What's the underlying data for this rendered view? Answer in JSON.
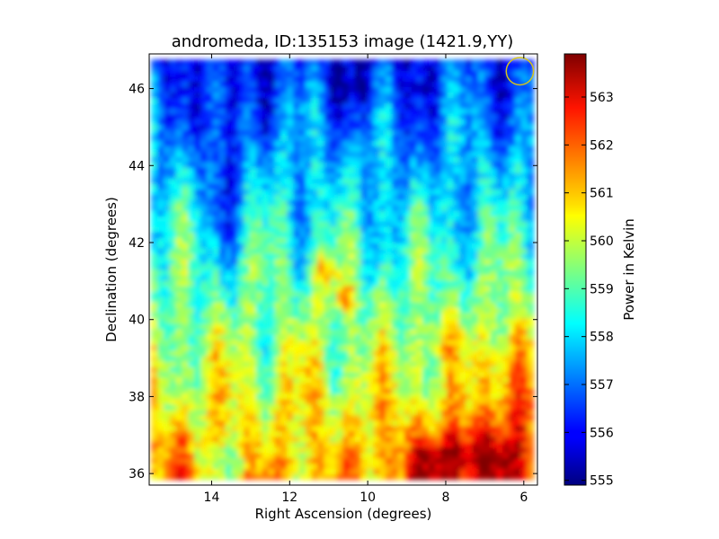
{
  "chart_data": {
    "type": "heatmap",
    "title": "andromeda, ID:135153 image (1421.9,YY)",
    "xlabel": "Right Ascension (degrees)",
    "ylabel": "Declination (degrees)",
    "xlim": [
      15.6,
      5.65
    ],
    "ylim": [
      35.7,
      46.9
    ],
    "x_ticks": [
      14,
      12,
      10,
      8,
      6
    ],
    "y_ticks": [
      36,
      38,
      40,
      42,
      44,
      46
    ],
    "x_tick_labels": [
      "14",
      "12",
      "10",
      "8",
      "6"
    ],
    "y_tick_labels": [
      "36",
      "38",
      "40",
      "42",
      "44",
      "46"
    ],
    "colorbar": {
      "label": "Power in Kelvin",
      "range": [
        554.9,
        563.9
      ],
      "ticks": [
        555,
        556,
        557,
        558,
        559,
        560,
        561,
        562,
        563
      ],
      "tick_labels": [
        "555",
        "556",
        "557",
        "558",
        "559",
        "560",
        "561",
        "562",
        "563"
      ],
      "colormap": "jet"
    },
    "data_extent": {
      "ra": [
        15.55,
        5.75
      ],
      "dec": [
        35.85,
        46.75
      ]
    },
    "features": [
      {
        "kind": "low",
        "ra": 13.7,
        "dec": 44.5,
        "value": 555.5
      },
      {
        "kind": "low",
        "ra": 10.2,
        "dec": 46.3,
        "value": 556.0
      },
      {
        "kind": "high",
        "ra": 11.1,
        "dec": 41.3,
        "value": 562.8
      },
      {
        "kind": "high",
        "ra": 10.6,
        "dec": 40.6,
        "value": 562.3
      },
      {
        "kind": "high",
        "ra": 7.6,
        "dec": 36.3,
        "value": 563.6
      },
      {
        "kind": "high",
        "ra": 6.3,
        "dec": 38.5,
        "value": 562.5
      },
      {
        "kind": "high",
        "ra": 8.2,
        "dec": 39.5,
        "value": 561.6
      }
    ],
    "marker": {
      "kind": "circle",
      "ra": 6.1,
      "dec": 46.45,
      "radius_deg": 0.35,
      "color": "#d4c31c"
    }
  }
}
